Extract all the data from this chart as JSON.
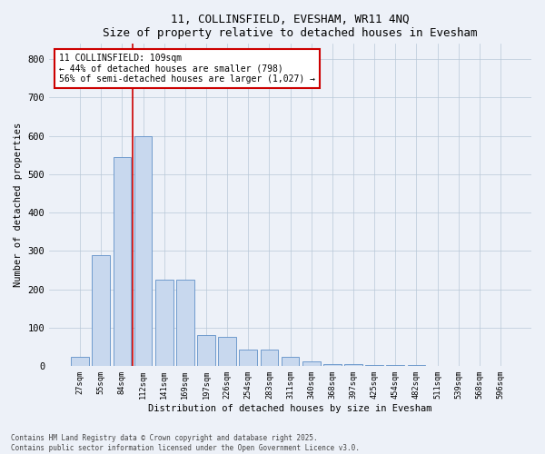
{
  "title": "11, COLLINSFIELD, EVESHAM, WR11 4NQ",
  "subtitle": "Size of property relative to detached houses in Evesham",
  "xlabel": "Distribution of detached houses by size in Evesham",
  "ylabel": "Number of detached properties",
  "categories": [
    "27sqm",
    "55sqm",
    "84sqm",
    "112sqm",
    "141sqm",
    "169sqm",
    "197sqm",
    "226sqm",
    "254sqm",
    "283sqm",
    "311sqm",
    "340sqm",
    "368sqm",
    "397sqm",
    "425sqm",
    "454sqm",
    "482sqm",
    "511sqm",
    "539sqm",
    "568sqm",
    "596sqm"
  ],
  "values": [
    25,
    290,
    545,
    600,
    225,
    225,
    80,
    75,
    42,
    42,
    25,
    12,
    5,
    4,
    3,
    2,
    2,
    1,
    0,
    0,
    0
  ],
  "bar_color": "#c8d8ee",
  "bar_edge_color": "#6090c8",
  "vline_color": "#cc0000",
  "annotation_text": "11 COLLINSFIELD: 109sqm\n← 44% of detached houses are smaller (798)\n56% of semi-detached houses are larger (1,027) →",
  "annotation_box_color": "#ffffff",
  "annotation_box_edge": "#cc0000",
  "background_color": "#edf1f8",
  "footer_line1": "Contains HM Land Registry data © Crown copyright and database right 2025.",
  "footer_line2": "Contains public sector information licensed under the Open Government Licence v3.0.",
  "ylim": [
    0,
    840
  ],
  "yticks": [
    0,
    100,
    200,
    300,
    400,
    500,
    600,
    700,
    800
  ],
  "vline_pos": 2.5
}
